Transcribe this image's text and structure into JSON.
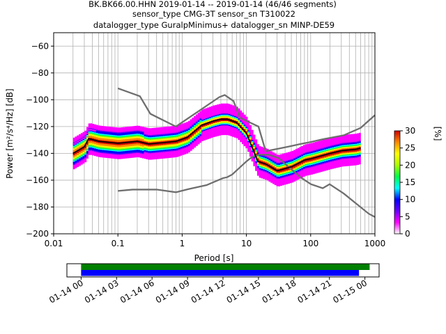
{
  "title": {
    "line1": "BK.BK66.00.HHN   2019-01-14 -- 2019-01-14  (46/46 segments)",
    "line2": "sensor_type CMG-3T sensor_sn T310022",
    "line3": "datalogger_type GuralpMinimus+ datalogger_sn MINP-DE59"
  },
  "chart_data": [
    {
      "type": "heatmap",
      "xlabel": "Period [s]",
      "ylabel": "Power [m²/s⁴/Hz] [dB]",
      "x_scale": "log",
      "xlim": [
        0.01,
        1000
      ],
      "ylim": [
        -200,
        -50
      ],
      "x_ticks": [
        0.01,
        0.1,
        1,
        10,
        100,
        1000
      ],
      "x_tick_labels": [
        "0.01",
        "0.1",
        "1",
        "10",
        "100",
        "1000"
      ],
      "y_ticks": [
        -200,
        -180,
        -160,
        -140,
        -120,
        -100,
        -80,
        -60
      ],
      "y_tick_labels": [
        "−200",
        "−180",
        "−160",
        "−140",
        "−120",
        "−100",
        "−80",
        "−60"
      ],
      "grid": true,
      "noise_models": [
        {
          "points": [
            [
              0.1,
              -91.5
            ],
            [
              0.22,
              -97.4
            ],
            [
              0.32,
              -110.5
            ],
            [
              0.8,
              -120
            ],
            [
              3.8,
              -98
            ],
            [
              4.6,
              -96.5
            ],
            [
              6.3,
              -101
            ],
            [
              7.9,
              -113.5
            ],
            [
              15.4,
              -120
            ],
            [
              20,
              -138.5
            ],
            [
              21.9,
              -138
            ],
            [
              31.6,
              -136.5
            ],
            [
              45,
              -135
            ],
            [
              70,
              -133
            ],
            [
              101,
              -131.5
            ],
            [
              154,
              -129.5
            ],
            [
              328,
              -126.5
            ],
            [
              600,
              -121
            ],
            [
              1000,
              -111.5
            ]
          ]
        },
        {
          "points": [
            [
              0.1,
              -168
            ],
            [
              0.17,
              -167
            ],
            [
              0.4,
              -167
            ],
            [
              0.8,
              -169
            ],
            [
              1.24,
              -166.7
            ],
            [
              2.4,
              -163.7
            ],
            [
              4.3,
              -158.5
            ],
            [
              5,
              -157.8
            ],
            [
              6,
              -155.8
            ],
            [
              10,
              -146
            ],
            [
              12,
              -143
            ],
            [
              15.6,
              -141
            ],
            [
              21.9,
              -141
            ],
            [
              31.6,
              -143.5
            ],
            [
              45,
              -150
            ],
            [
              70,
              -158
            ],
            [
              101,
              -163
            ],
            [
              154,
              -166
            ],
            [
              197,
              -163
            ],
            [
              328,
              -170
            ],
            [
              800,
              -185
            ],
            [
              1000,
              -187.5
            ]
          ]
        }
      ],
      "ppsd_mean": {
        "points": [
          [
            0.02,
            -140
          ],
          [
            0.03,
            -135
          ],
          [
            0.035,
            -129
          ],
          [
            0.05,
            -131
          ],
          [
            0.1,
            -132.5
          ],
          [
            0.2,
            -131
          ],
          [
            0.3,
            -133
          ],
          [
            0.5,
            -132
          ],
          [
            0.8,
            -131
          ],
          [
            1.2,
            -128
          ],
          [
            2,
            -119
          ],
          [
            3,
            -116
          ],
          [
            4,
            -114.5
          ],
          [
            5,
            -114.5
          ],
          [
            7,
            -117
          ],
          [
            10,
            -125
          ],
          [
            15,
            -146
          ],
          [
            20,
            -148
          ],
          [
            30,
            -153
          ],
          [
            50,
            -150
          ],
          [
            80,
            -145
          ],
          [
            100,
            -144
          ],
          [
            200,
            -140
          ],
          [
            300,
            -138
          ],
          [
            500,
            -137
          ],
          [
            600,
            -136
          ]
        ]
      },
      "colorbar": {
        "label": "[%]",
        "range": [
          0,
          30
        ],
        "ticks": [
          0,
          5,
          10,
          15,
          20,
          25,
          30
        ],
        "colors": [
          "#ffffff",
          "#ff00ff",
          "#6600ff",
          "#0000ff",
          "#00ffff",
          "#00ff44",
          "#aaff00",
          "#ffff00",
          "#ff8800",
          "#cc0000"
        ]
      }
    },
    {
      "type": "timeline",
      "x_tick_labels": [
        "01-14 00",
        "01-14 03",
        "01-14 06",
        "01-14 09",
        "01-14 12",
        "01-14 15",
        "01-14 18",
        "01-14 21",
        "01-15 00"
      ],
      "x_range_hours": [
        -1.2,
        25.2
      ],
      "bars": [
        {
          "color": "#008000",
          "start_hour": 0,
          "end_hour": 24.4
        },
        {
          "color": "#0000ff",
          "start_hour": 0,
          "end_hour": 23.5
        }
      ]
    }
  ]
}
